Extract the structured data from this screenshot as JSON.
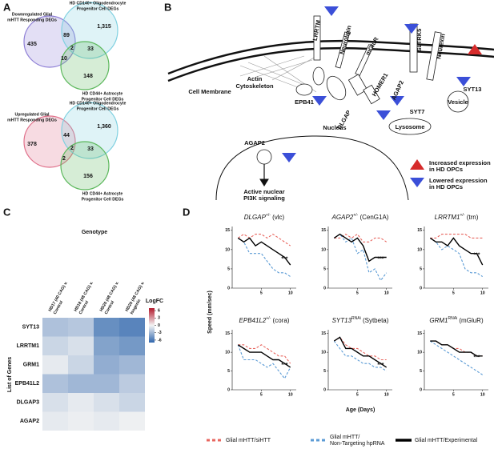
{
  "panel_labels": [
    "A",
    "B",
    "C",
    "D"
  ],
  "venn": [
    {
      "labels": {
        "left": [
          "Downregulated Glial",
          "mHTT Responding DEGs"
        ],
        "top": [
          "HD CD140+ Oligodendrocyte",
          "Progenitor Cell DEGs"
        ],
        "bottom": [
          "HD CD44+ Astrocyte",
          "Progenitor Cell DEGs"
        ]
      },
      "counts": {
        "left": "435",
        "top": "1,315",
        "left_top": "89",
        "center": "2",
        "top_bottom": "33",
        "left_bottom": "10",
        "bottom": "148"
      },
      "colors": {
        "left": "#8e7fd6",
        "top": "#7fd0e0",
        "bottom": "#5cb85c"
      }
    },
    {
      "labels": {
        "left": [
          "Upregulated Glial",
          "mHTT Responding DEGs"
        ],
        "top": [
          "HD CD140+ Oligodendrocyte",
          "Progenitor Cell DEGs"
        ],
        "bottom": [
          "HD CD44+ Astrocyte",
          "Progenitor Cell DEGs"
        ]
      },
      "counts": {
        "left": "378",
        "top": "1,360",
        "left_top": "44",
        "center": "2",
        "top_bottom": "33",
        "left_bottom": "2",
        "bottom": "156"
      },
      "colors": {
        "left": "#e0708a",
        "top": "#7fd0e0",
        "bottom": "#5cb85c"
      }
    }
  ],
  "diagram": {
    "labels": [
      "LRRTM",
      "Neuroligin",
      "mGluR",
      "SLTRK5",
      "Neurexin",
      "EPB41",
      "HOMER1",
      "DLGAP",
      "AGAP2",
      "SYT7",
      "SYT13",
      "Vesicle",
      "Lysosome",
      "AGAP2"
    ],
    "membrane": "Cell Membrane",
    "cytoskeleton": [
      "Actin",
      "Cytoskeleton"
    ],
    "nucleus": "Nucleus",
    "signal": [
      "Active nuclear",
      "PI3K signaling"
    ],
    "legend": [
      [
        "Increased expression",
        "in HD OPCs"
      ],
      [
        "Lowered expression",
        "in HD OPCs"
      ]
    ]
  },
  "panel_d": {
    "ylabel": "Speed (mm/sec)",
    "xlabel": "Age (Days)"
  },
  "chart_data": [
    {
      "type": "heatmap",
      "title": "Genotype",
      "ylabel": "List of Genes",
      "colorbar_label": "LogFC",
      "columns": [
        [
          "HD17 (40 CAG) v.",
          "Control"
        ],
        [
          "HD18 (48 CAG) v.",
          "Control"
        ],
        [
          "HD20 (48 CAG) v.",
          "Control"
        ],
        [
          "HD20 (48 CAG) v.",
          "Isogenic"
        ]
      ],
      "rows": [
        "SYT13",
        "LRRTM1",
        "GRM1",
        "EPB41L2",
        "DLGAP3",
        "AGAP2"
      ],
      "values": [
        [
          -2.5,
          -2.2,
          -5,
          -5.5
        ],
        [
          -1.5,
          -1,
          -4,
          -4.5
        ],
        [
          -0.5,
          -1.5,
          -3.5,
          -3
        ],
        [
          -2.5,
          -3,
          -3,
          -2
        ],
        [
          -1,
          -0.5,
          -1,
          -1.5
        ],
        [
          -0.5,
          -0.3,
          -0.5,
          -0.2
        ]
      ],
      "clim": [
        -7,
        7
      ],
      "cticks": [
        6,
        3,
        0,
        -3,
        -6
      ],
      "colorscale": [
        "#2f66ad",
        "#f4f4f4",
        "#b2182b"
      ]
    },
    {
      "type": "line",
      "title": {
        "gene": "DLGAP",
        "sup": "+/-",
        "rest": "(vlc)"
      },
      "annotation": "***",
      "x": [
        1,
        2,
        3,
        4,
        5,
        6,
        7,
        8,
        9,
        10
      ],
      "xlim": [
        0,
        11
      ],
      "xticks": [
        5,
        10
      ],
      "ylim": [
        0,
        16
      ],
      "yticks": [
        0,
        5,
        10,
        15
      ],
      "series": [
        {
          "name": "Glial mHTT/siHTT",
          "color": "#e8665f",
          "style": "dashed",
          "values": [
            13,
            14,
            13,
            14,
            14,
            13,
            14,
            13,
            12,
            11
          ]
        },
        {
          "name": "Glial mHTT/ Non-Targeting hpRNA",
          "color": "#5b9bd5",
          "style": "dashed",
          "values": [
            13,
            12,
            9,
            9,
            9,
            7,
            5,
            4,
            4,
            3
          ]
        },
        {
          "name": "Glial mHTT/Experimental",
          "color": "#000000",
          "style": "solid",
          "values": [
            13,
            12,
            13,
            11,
            12,
            11,
            10,
            9,
            8,
            6
          ]
        }
      ]
    },
    {
      "type": "line",
      "title": {
        "gene": "AGAP2",
        "sup": "+/-",
        "rest": "(CenG1A)"
      },
      "annotation": "***",
      "x": [
        1,
        2,
        3,
        4,
        5,
        6,
        7,
        8,
        9,
        10
      ],
      "xlim": [
        0,
        11
      ],
      "xticks": [
        5,
        10
      ],
      "ylim": [
        0,
        16
      ],
      "yticks": [
        0,
        5,
        10,
        15
      ],
      "series": [
        {
          "color": "#e8665f",
          "style": "dashed",
          "values": [
            13,
            13,
            14,
            13,
            14,
            12,
            12,
            13,
            13,
            12
          ]
        },
        {
          "color": "#5b9bd5",
          "style": "dashed",
          "values": [
            13,
            14,
            12,
            13,
            9,
            10,
            4,
            5,
            2,
            4
          ]
        },
        {
          "color": "#000000",
          "style": "solid",
          "values": [
            13,
            14,
            13,
            12,
            13,
            11,
            7,
            8,
            8,
            8
          ]
        }
      ]
    },
    {
      "type": "line",
      "title": {
        "gene": "LRRTM1",
        "sup": "+/-",
        "rest": "(trn)"
      },
      "annotation": "***",
      "x": [
        1,
        2,
        3,
        4,
        5,
        6,
        7,
        8,
        9,
        10
      ],
      "xlim": [
        0,
        11
      ],
      "xticks": [
        5,
        10
      ],
      "ylim": [
        0,
        16
      ],
      "yticks": [
        0,
        5,
        10,
        15
      ],
      "series": [
        {
          "color": "#e8665f",
          "style": "dashed",
          "values": [
            13,
            13,
            14,
            14,
            14,
            14,
            14,
            13,
            13,
            13
          ]
        },
        {
          "color": "#5b9bd5",
          "style": "dashed",
          "values": [
            13,
            12,
            10,
            11,
            10,
            9,
            5,
            4,
            4,
            3
          ]
        },
        {
          "color": "#000000",
          "style": "solid",
          "values": [
            13,
            12,
            12,
            11,
            13,
            11,
            10,
            9,
            9,
            6
          ]
        }
      ]
    },
    {
      "type": "line",
      "title": {
        "gene": "EPB41L2",
        "sup": "+/-",
        "rest": "(cora)"
      },
      "annotation": "***",
      "x": [
        1,
        2,
        3,
        4,
        5,
        6,
        7,
        8,
        9,
        10
      ],
      "xlim": [
        0,
        11
      ],
      "xticks": [
        5,
        10
      ],
      "ylim": [
        0,
        16
      ],
      "yticks": [
        0,
        5,
        10,
        15
      ],
      "series": [
        {
          "color": "#e8665f",
          "style": "dashed",
          "values": [
            12,
            12,
            11,
            11,
            12,
            11,
            10,
            9,
            9,
            7
          ]
        },
        {
          "color": "#5b9bd5",
          "style": "dashed",
          "values": [
            12,
            8,
            8,
            8,
            7,
            6,
            7,
            5,
            3,
            6
          ]
        },
        {
          "color": "#000000",
          "style": "solid",
          "values": [
            12,
            11,
            10,
            10,
            10,
            9,
            8,
            8,
            7,
            6
          ]
        }
      ]
    },
    {
      "type": "line",
      "title": {
        "gene": "SYT13",
        "sup": "RNAi",
        "rest": "(Sytbeta)"
      },
      "annotation": "***",
      "x": [
        1,
        2,
        3,
        4,
        5,
        6,
        7,
        8,
        9,
        10
      ],
      "xlim": [
        0,
        11
      ],
      "xticks": [
        5,
        10
      ],
      "ylim": [
        0,
        16
      ],
      "yticks": [
        0,
        5,
        10,
        15
      ],
      "series": [
        {
          "color": "#e8665f",
          "style": "dashed",
          "values": [
            13,
            14,
            12,
            11,
            11,
            10,
            9,
            9,
            8,
            8
          ]
        },
        {
          "color": "#5b9bd5",
          "style": "dashed",
          "values": [
            13,
            11,
            9,
            9,
            8,
            7,
            7,
            6,
            6,
            5
          ]
        },
        {
          "color": "#000000",
          "style": "solid",
          "values": [
            13,
            14,
            11,
            11,
            10,
            9,
            9,
            8,
            7,
            6
          ]
        }
      ]
    },
    {
      "type": "line",
      "title": {
        "gene": "GRM1",
        "sup": "RNAi",
        "rest": "(mGluR)"
      },
      "annotation": "***",
      "x": [
        1,
        2,
        3,
        4,
        5,
        6,
        7,
        8,
        9,
        10
      ],
      "xlim": [
        0,
        11
      ],
      "xticks": [
        5,
        10
      ],
      "ylim": [
        0,
        16
      ],
      "yticks": [
        0,
        5,
        10,
        15
      ],
      "series": [
        {
          "color": "#e8665f",
          "style": "dashed",
          "values": [
            13,
            13,
            12,
            12,
            11,
            11,
            10,
            10,
            9,
            9
          ]
        },
        {
          "color": "#5b9bd5",
          "style": "dashed",
          "values": [
            13,
            12,
            11,
            10,
            9,
            8,
            7,
            6,
            5,
            4
          ]
        },
        {
          "color": "#000000",
          "style": "solid",
          "values": [
            13,
            13,
            12,
            12,
            11,
            10,
            10,
            10,
            9,
            9
          ]
        }
      ]
    }
  ]
}
